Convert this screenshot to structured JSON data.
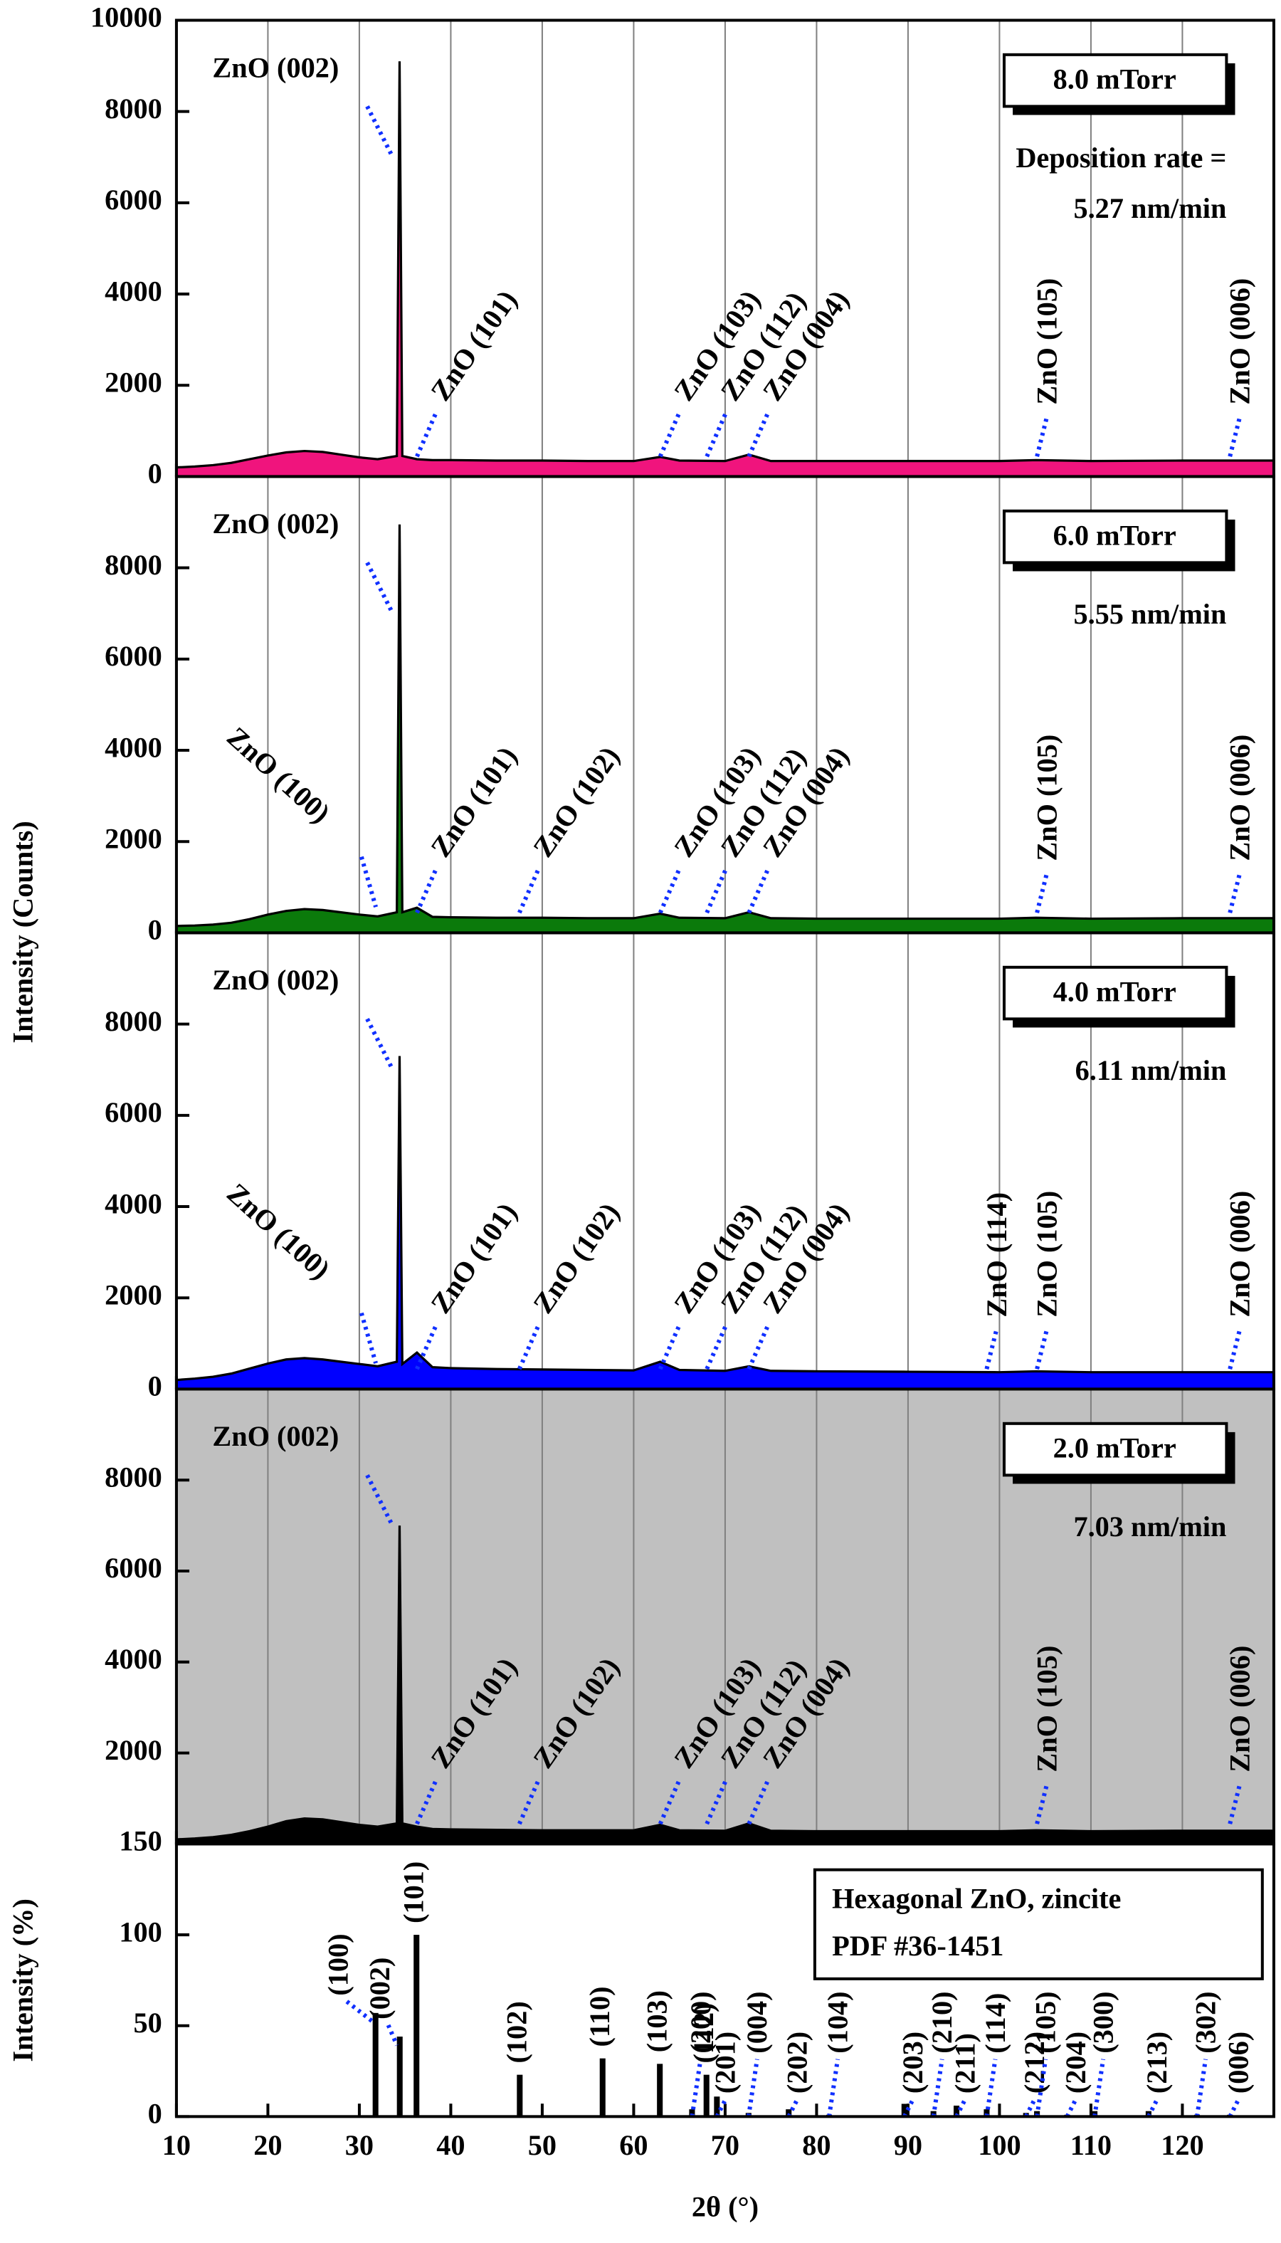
{
  "chart_data": [
    {
      "type": "area",
      "y_label": "Intensity (Counts)",
      "x": [
        10,
        12,
        14,
        16,
        18,
        20,
        22,
        24,
        26,
        28,
        30,
        32,
        34.1,
        34.4,
        34.7,
        36.3,
        38,
        40,
        45,
        50,
        55,
        60,
        62.9,
        65,
        70,
        72.6,
        75,
        80,
        90,
        100,
        104,
        110,
        120,
        124,
        130
      ],
      "xlim": [
        10,
        130
      ],
      "xticks": [
        10,
        20,
        30,
        40,
        50,
        60,
        70,
        80,
        90,
        100,
        110,
        120
      ],
      "ylim": [
        0,
        10000
      ],
      "yticks": [
        0,
        2000,
        4000,
        6000,
        8000,
        10000
      ],
      "grid": true,
      "line_color": "#000000",
      "annotation_color": "#1030ff",
      "series": [
        {
          "name": "8.0 mTorr",
          "color": "#f0147d",
          "values": [
            200,
            220,
            250,
            300,
            380,
            460,
            530,
            560,
            540,
            480,
            420,
            380,
            450,
            9100,
            450,
            380,
            360,
            360,
            350,
            350,
            340,
            340,
            430,
            350,
            340,
            480,
            340,
            340,
            340,
            340,
            360,
            340,
            350,
            350,
            350
          ]
        }
      ],
      "notes": [
        "Deposition rate =",
        "5.27 nm/min"
      ],
      "annotations": [
        {
          "text": "ZnO (002)",
          "x": 34.4
        },
        {
          "text": "ZnO (101)",
          "x": 36.3
        },
        {
          "text": "ZnO (103)",
          "x": 62.9
        },
        {
          "text": "ZnO (112)",
          "x": 68
        },
        {
          "text": "ZnO (004)",
          "x": 72.6
        },
        {
          "text": "ZnO (105)",
          "x": 104.1
        },
        {
          "text": "ZnO (006)",
          "x": 125.2
        }
      ]
    },
    {
      "type": "area",
      "x": [
        10,
        12,
        14,
        16,
        18,
        20,
        22,
        24,
        26,
        28,
        30,
        32,
        34.1,
        34.4,
        34.7,
        36.3,
        38,
        40,
        45,
        50,
        55,
        60,
        62.9,
        65,
        70,
        72.6,
        75,
        80,
        90,
        100,
        104,
        110,
        120,
        124,
        130
      ],
      "xlim": [
        10,
        130
      ],
      "xticks": [
        10,
        20,
        30,
        40,
        50,
        60,
        70,
        80,
        90,
        100,
        110,
        120
      ],
      "ylim": [
        0,
        10000
      ],
      "yticks": [
        0,
        2000,
        4000,
        6000,
        8000
      ],
      "grid": true,
      "line_color": "#000000",
      "annotation_color": "#1030ff",
      "series": [
        {
          "name": "6.0 mTorr",
          "color": "#0b7a0b",
          "values": [
            150,
            160,
            180,
            220,
            300,
            400,
            480,
            520,
            500,
            450,
            400,
            360,
            450,
            8950,
            450,
            550,
            350,
            340,
            330,
            330,
            320,
            320,
            420,
            330,
            320,
            450,
            320,
            310,
            310,
            310,
            330,
            310,
            320,
            320,
            320
          ]
        }
      ],
      "notes": [
        "5.55 nm/min"
      ],
      "annotations": [
        {
          "text": "ZnO (002)",
          "x": 34.4
        },
        {
          "text": "ZnO (100)",
          "x": 31.8
        },
        {
          "text": "ZnO (101)",
          "x": 36.3
        },
        {
          "text": "ZnO (102)",
          "x": 47.5
        },
        {
          "text": "ZnO (103)",
          "x": 62.9
        },
        {
          "text": "ZnO (112)",
          "x": 68
        },
        {
          "text": "ZnO (004)",
          "x": 72.6
        },
        {
          "text": "ZnO (105)",
          "x": 104.1
        },
        {
          "text": "ZnO (006)",
          "x": 125.2
        }
      ]
    },
    {
      "type": "area",
      "x": [
        10,
        12,
        14,
        16,
        18,
        20,
        22,
        24,
        26,
        28,
        30,
        32,
        34.1,
        34.4,
        34.7,
        36.3,
        38,
        40,
        45,
        50,
        55,
        60,
        62.9,
        65,
        70,
        72.6,
        75,
        80,
        90,
        100,
        104,
        110,
        120,
        124,
        130
      ],
      "xlim": [
        10,
        130
      ],
      "xticks": [
        10,
        20,
        30,
        40,
        50,
        60,
        70,
        80,
        90,
        100,
        110,
        120
      ],
      "ylim": [
        0,
        10000
      ],
      "yticks": [
        0,
        2000,
        4000,
        6000,
        8000
      ],
      "grid": true,
      "line_color": "#000000",
      "annotation_color": "#1030ff",
      "series": [
        {
          "name": "4.0 mTorr",
          "color": "#0000ff",
          "values": [
            200,
            230,
            270,
            340,
            450,
            560,
            650,
            680,
            650,
            600,
            550,
            500,
            600,
            7300,
            550,
            800,
            480,
            460,
            440,
            430,
            420,
            410,
            600,
            420,
            400,
            500,
            400,
            390,
            380,
            370,
            390,
            370,
            370,
            370,
            370
          ]
        }
      ],
      "notes": [
        "6.11 nm/min"
      ],
      "annotations": [
        {
          "text": "ZnO (002)",
          "x": 34.4
        },
        {
          "text": "ZnO (100)",
          "x": 31.8
        },
        {
          "text": "ZnO (101)",
          "x": 36.3
        },
        {
          "text": "ZnO (102)",
          "x": 47.5
        },
        {
          "text": "ZnO (103)",
          "x": 62.9
        },
        {
          "text": "ZnO (112)",
          "x": 68
        },
        {
          "text": "ZnO (004)",
          "x": 72.6
        },
        {
          "text": "ZnO (114)",
          "x": 98.6
        },
        {
          "text": "ZnO (105)",
          "x": 104.1
        },
        {
          "text": "ZnO (006)",
          "x": 125.2
        }
      ]
    },
    {
      "type": "area",
      "x": [
        10,
        12,
        14,
        16,
        18,
        20,
        22,
        24,
        26,
        28,
        30,
        32,
        34.1,
        34.4,
        34.7,
        36.3,
        38,
        40,
        45,
        50,
        55,
        60,
        62.9,
        65,
        70,
        72.6,
        75,
        80,
        90,
        100,
        104,
        110,
        120,
        124,
        130
      ],
      "xlim": [
        10,
        130
      ],
      "xticks": [
        10,
        20,
        30,
        40,
        50,
        60,
        70,
        80,
        90,
        100,
        110,
        120
      ],
      "ylim": [
        0,
        10000
      ],
      "yticks": [
        2000,
        4000,
        6000,
        8000
      ],
      "grid": true,
      "line_color": "#000000",
      "annotation_color": "#1030ff",
      "background": "#c0c0c0",
      "series": [
        {
          "name": "2.0 mTorr",
          "color": "#000000",
          "values": [
            100,
            120,
            150,
            200,
            280,
            380,
            500,
            560,
            540,
            480,
            420,
            380,
            450,
            7000,
            450,
            380,
            330,
            320,
            310,
            300,
            300,
            300,
            420,
            300,
            290,
            450,
            290,
            280,
            280,
            280,
            300,
            280,
            290,
            290,
            290
          ]
        }
      ],
      "notes": [
        "7.03 nm/min"
      ],
      "annotations": [
        {
          "text": "ZnO (002)",
          "x": 34.4
        },
        {
          "text": "ZnO (101)",
          "x": 36.3
        },
        {
          "text": "ZnO (102)",
          "x": 47.5
        },
        {
          "text": "ZnO (103)",
          "x": 62.9
        },
        {
          "text": "ZnO (112)",
          "x": 68
        },
        {
          "text": "ZnO (004)",
          "x": 72.6
        },
        {
          "text": "ZnO (105)",
          "x": 104.1
        },
        {
          "text": "ZnO (006)",
          "x": 125.2
        }
      ]
    },
    {
      "type": "bar",
      "y_label": "Intensity (%)",
      "x_label": "2θ (°)",
      "xlim": [
        10,
        130
      ],
      "xticks": [
        10,
        20,
        30,
        40,
        50,
        60,
        70,
        80,
        90,
        100,
        110,
        120
      ],
      "ylim": [
        0,
        150
      ],
      "yticks": [
        0,
        50,
        100,
        150
      ],
      "grid": false,
      "color": "#000000",
      "annotation_color": "#1030ff",
      "box_text": [
        "Hexagonal ZnO, zincite",
        "PDF #36-1451"
      ],
      "x": [
        31.77,
        34.42,
        36.25,
        47.54,
        56.6,
        62.86,
        66.38,
        67.96,
        69.1,
        72.56,
        76.95,
        81.37,
        89.6,
        92.78,
        95.3,
        98.6,
        102.9,
        104.1,
        107.4,
        110.4,
        116.3,
        121.6,
        125.2
      ],
      "values": [
        57,
        44,
        100,
        23,
        32,
        29,
        4,
        23,
        11,
        2,
        4,
        1,
        7,
        3,
        6,
        4,
        2,
        3,
        1,
        3,
        3,
        1,
        1
      ],
      "labels": [
        "(100)",
        "(002)",
        "(101)",
        "(102)",
        "(110)",
        "(103)",
        "(200)",
        "(112)",
        "(201)",
        "(004)",
        "(202)",
        "(104)",
        "(203)",
        "(210)",
        "(211)",
        "(114)",
        "(212)",
        "(105)",
        "(204)",
        "(300)",
        "(213)",
        "(302)",
        "(006)"
      ]
    }
  ]
}
